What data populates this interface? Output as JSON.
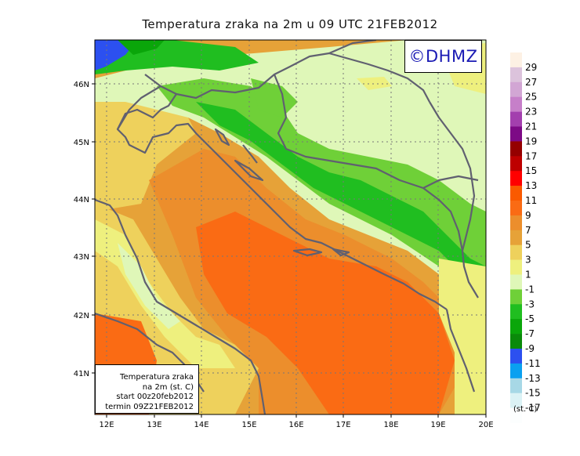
{
  "title": "Temperatura zraka na 2m u 09 UTC 21FEB2012",
  "logo": "©DHMZ",
  "info_box": {
    "line1": "Temperatura zraka",
    "line2": "na 2m (st. C)",
    "line3": "start 00z20feb2012",
    "line4": "termin 09Z21FEB2012"
  },
  "x_ticks": [
    "12E",
    "13E",
    "14E",
    "15E",
    "16E",
    "17E",
    "18E",
    "19E",
    "20E"
  ],
  "y_ticks": [
    "46N",
    "45N",
    "44N",
    "43N",
    "42N",
    "41N"
  ],
  "colorbar": {
    "unit": "(st. C)",
    "labels": [
      "29",
      "27",
      "25",
      "23",
      "21",
      "19",
      "17",
      "15",
      "13",
      "11",
      "9",
      "7",
      "5",
      "3",
      "1",
      "-1",
      "-3",
      "-5",
      "-7",
      "-9",
      "-11",
      "-13",
      "-15",
      "-17"
    ],
    "colors": [
      "#fdf1e4",
      "#dcc3dc",
      "#d2a6d4",
      "#c67fc9",
      "#a33fae",
      "#7d0a86",
      "#950000",
      "#be0000",
      "#ff0000",
      "#fa5a00",
      "#fa6b14",
      "#ec8e2c",
      "#e6a238",
      "#eed15c",
      "#eef07e",
      "#dff7b8",
      "#6fd038",
      "#20be20",
      "#0aa60a",
      "#0a8a0a",
      "#2c50f0",
      "#0aa0f0",
      "#a7d8e6",
      "#dbf2f5",
      "#fcfefe"
    ]
  }
}
